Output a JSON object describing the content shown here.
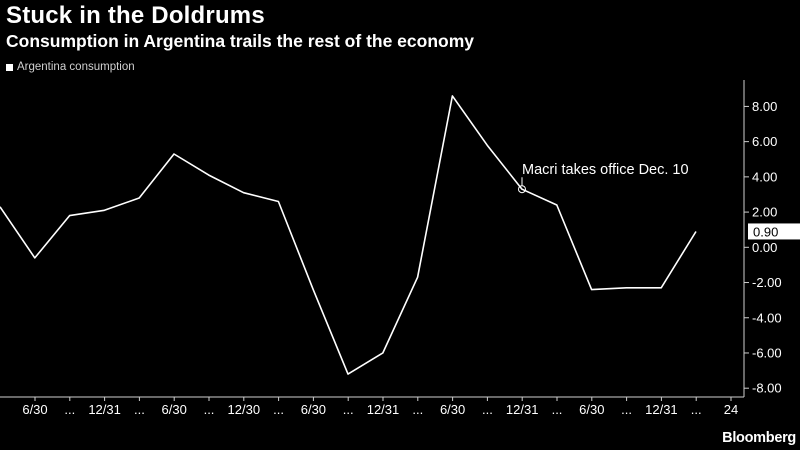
{
  "title": "Stuck in the Doldrums",
  "subtitle": "Consumption in Argentina trails the rest of the economy",
  "logo": "Bloomberg",
  "colors": {
    "background": "#000000",
    "line": "#ffffff",
    "text": "#ffffff"
  },
  "chart_data": {
    "type": "line",
    "title": "Stuck in the Doldrums",
    "subtitle": "Consumption in Argentina trails the rest of the economy",
    "legend": [
      "Argentina consumption"
    ],
    "legend_position": "top-left",
    "grid": false,
    "ylim": [
      -8.5,
      9.5
    ],
    "yticks": [
      "8.00",
      "6.00",
      "4.00",
      "2.00",
      "0.00",
      "-2.00",
      "-4.00",
      "-6.00",
      "-8.00"
    ],
    "y_axis_side": "right",
    "x_tick_labels": [
      "6/30",
      "...",
      "12/31",
      "...",
      "6/30",
      "...",
      "12/30",
      "...",
      "6/30",
      "...",
      "12/31",
      "...",
      "6/30",
      "...",
      "12/31",
      "...",
      "6/30",
      "...",
      "12/31",
      "...",
      "24"
    ],
    "series": [
      {
        "name": "Argentina consumption",
        "values": [
          2.3,
          -0.6,
          1.8,
          2.1,
          2.8,
          5.3,
          4.1,
          3.1,
          2.6,
          -2.4,
          -7.2,
          -6.0,
          -1.7,
          8.6,
          5.8,
          3.3,
          2.4,
          -2.4,
          -2.3,
          -2.3,
          0.9
        ],
        "last_value_label": "0.90"
      }
    ],
    "annotations": [
      {
        "text": "Macri takes office Dec. 10",
        "point_index": 15
      }
    ]
  }
}
